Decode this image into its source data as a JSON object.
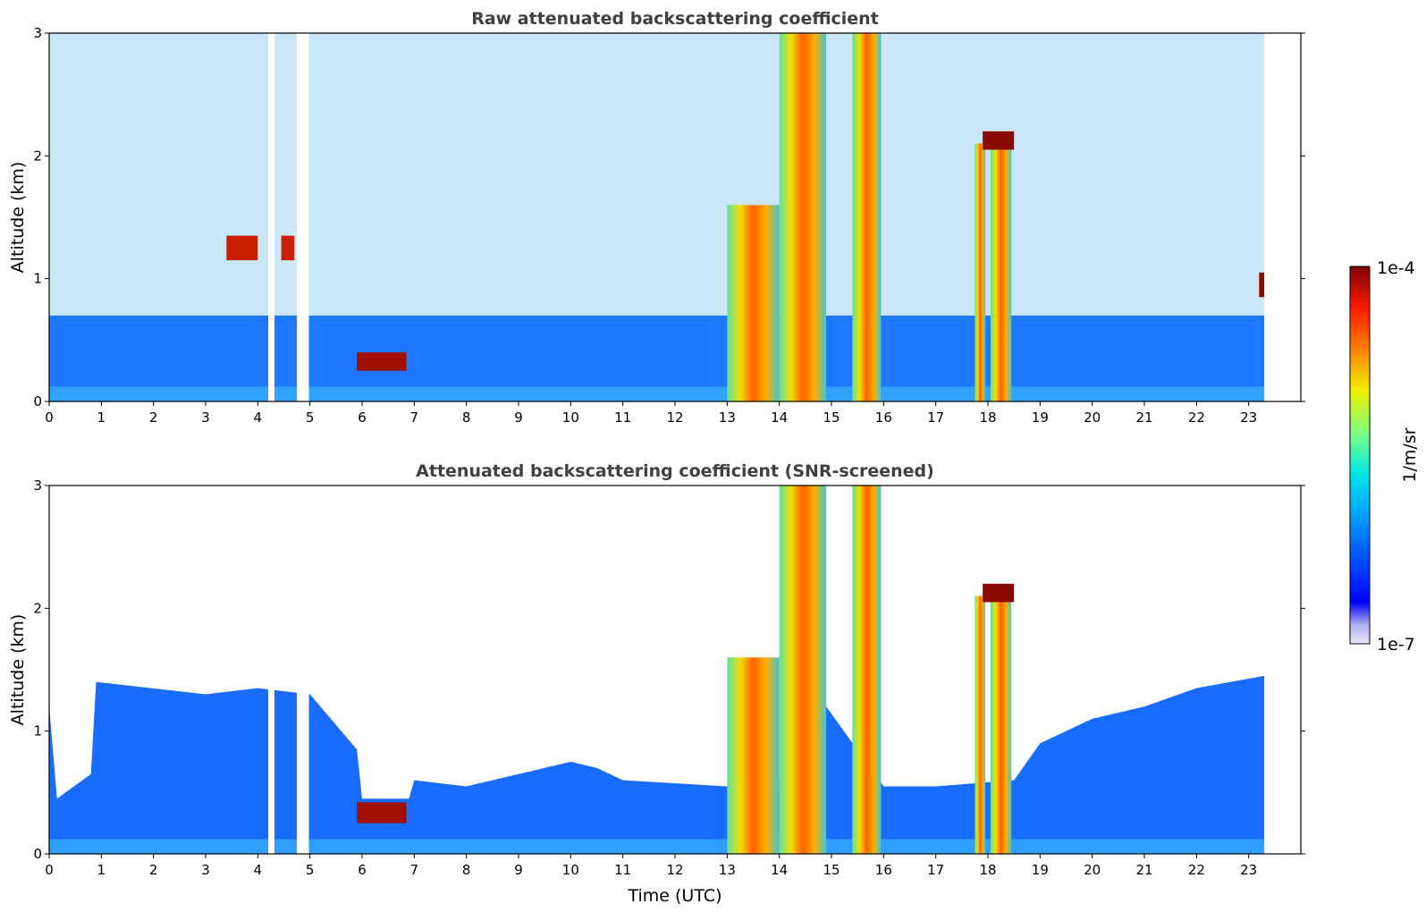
{
  "figure": {
    "colorbar": {
      "label": "1/m/sr",
      "max_label": "1e-4",
      "min_label": "1e-7",
      "colormap": "jet",
      "scale": "log"
    }
  },
  "chart_data": [
    {
      "type": "heatmap",
      "title": "Raw attenuated backscattering coefficient",
      "xlabel": "",
      "ylabel": "Altitude (km)",
      "xlim": [
        0,
        24
      ],
      "ylim": [
        0,
        3
      ],
      "x_ticks": [
        "0",
        "1",
        "2",
        "3",
        "4",
        "5",
        "6",
        "7",
        "8",
        "9",
        "10",
        "11",
        "12",
        "13",
        "14",
        "15",
        "16",
        "17",
        "18",
        "19",
        "20",
        "21",
        "22",
        "23"
      ],
      "y_ticks": [
        "0",
        "1",
        "2",
        "3"
      ],
      "data_end_hour": 23.3,
      "data_gaps_hours": [
        [
          4.2,
          4.32
        ],
        [
          4.75,
          4.98
        ]
      ],
      "features": [
        {
          "kind": "aerosol_layer",
          "t_start": 0,
          "t_end": 23.3,
          "alt_top_km": 0.7
        },
        {
          "kind": "noise_region",
          "t_start": 0,
          "t_end": 23.3,
          "alt_bottom_km": 0.7,
          "alt_top_km": 3.0
        },
        {
          "kind": "low_cloud",
          "t_start": 5.9,
          "t_end": 6.85,
          "alt_bottom_km": 0.25,
          "alt_top_km": 0.4
        },
        {
          "kind": "thin_cloud",
          "t_start": 3.4,
          "t_end": 4.0,
          "alt_bottom_km": 1.15,
          "alt_top_km": 1.35
        },
        {
          "kind": "thin_cloud",
          "t_start": 4.45,
          "t_end": 4.7,
          "alt_bottom_km": 1.15,
          "alt_top_km": 1.35
        },
        {
          "kind": "precipitation",
          "t_start": 13.0,
          "t_end": 14.0,
          "alt_bottom_km": 0,
          "alt_top_km": 1.6
        },
        {
          "kind": "precipitation",
          "t_start": 14.0,
          "t_end": 14.9,
          "alt_bottom_km": 0,
          "alt_top_km": 3.0
        },
        {
          "kind": "precipitation",
          "t_start": 15.4,
          "t_end": 15.95,
          "alt_bottom_km": 0,
          "alt_top_km": 3.0
        },
        {
          "kind": "precipitation",
          "t_start": 17.75,
          "t_end": 17.95,
          "alt_bottom_km": 0,
          "alt_top_km": 2.1
        },
        {
          "kind": "precipitation",
          "t_start": 18.05,
          "t_end": 18.45,
          "alt_bottom_km": 0,
          "alt_top_km": 2.1
        },
        {
          "kind": "cloud_layer",
          "t_start": 17.9,
          "t_end": 18.5,
          "alt_bottom_km": 2.05,
          "alt_top_km": 2.2
        },
        {
          "kind": "cloud_layer",
          "t_start": 23.2,
          "t_end": 23.3,
          "alt_bottom_km": 0.85,
          "alt_top_km": 1.05
        }
      ]
    },
    {
      "type": "heatmap",
      "title": "Attenuated backscattering coefficient (SNR-screened)",
      "xlabel": "Time (UTC)",
      "ylabel": "Altitude (km)",
      "xlim": [
        0,
        24
      ],
      "ylim": [
        0,
        3
      ],
      "x_ticks": [
        "0",
        "1",
        "2",
        "3",
        "4",
        "5",
        "6",
        "7",
        "8",
        "9",
        "10",
        "11",
        "12",
        "13",
        "14",
        "15",
        "16",
        "17",
        "18",
        "19",
        "20",
        "21",
        "22",
        "23"
      ],
      "y_ticks": [
        "0",
        "1",
        "2",
        "3"
      ],
      "data_end_hour": 23.3,
      "data_gaps_hours": [
        [
          4.2,
          4.32
        ],
        [
          4.75,
          4.98
        ]
      ],
      "screened_boundary_km": [
        [
          0.0,
          1.2
        ],
        [
          0.15,
          0.45
        ],
        [
          0.8,
          0.65
        ],
        [
          0.9,
          1.4
        ],
        [
          3.0,
          1.3
        ],
        [
          4.0,
          1.35
        ],
        [
          5.0,
          1.3
        ],
        [
          5.9,
          0.85
        ],
        [
          6.0,
          0.45
        ],
        [
          6.9,
          0.45
        ],
        [
          7.0,
          0.6
        ],
        [
          8.0,
          0.55
        ],
        [
          9.0,
          0.65
        ],
        [
          10.0,
          0.75
        ],
        [
          10.5,
          0.7
        ],
        [
          11.0,
          0.6
        ],
        [
          13.0,
          0.55
        ],
        [
          14.0,
          0.6
        ],
        [
          14.9,
          1.2
        ],
        [
          16.0,
          0.55
        ],
        [
          17.0,
          0.55
        ],
        [
          18.5,
          0.6
        ],
        [
          19.0,
          0.9
        ],
        [
          20.0,
          1.1
        ],
        [
          21.0,
          1.2
        ],
        [
          22.0,
          1.35
        ],
        [
          23.3,
          1.45
        ]
      ],
      "features": [
        {
          "kind": "low_cloud",
          "t_start": 5.9,
          "t_end": 6.85,
          "alt_bottom_km": 0.25,
          "alt_top_km": 0.42
        },
        {
          "kind": "precipitation",
          "t_start": 13.0,
          "t_end": 14.0,
          "alt_bottom_km": 0,
          "alt_top_km": 1.6
        },
        {
          "kind": "precipitation",
          "t_start": 14.0,
          "t_end": 14.9,
          "alt_bottom_km": 0,
          "alt_top_km": 3.0
        },
        {
          "kind": "precipitation",
          "t_start": 15.4,
          "t_end": 15.95,
          "alt_bottom_km": 0,
          "alt_top_km": 3.0
        },
        {
          "kind": "precipitation",
          "t_start": 17.75,
          "t_end": 17.95,
          "alt_bottom_km": 0,
          "alt_top_km": 2.1
        },
        {
          "kind": "precipitation",
          "t_start": 18.05,
          "t_end": 18.45,
          "alt_bottom_km": 0,
          "alt_top_km": 2.1
        },
        {
          "kind": "cloud_layer",
          "t_start": 17.9,
          "t_end": 18.5,
          "alt_bottom_km": 2.05,
          "alt_top_km": 2.2
        }
      ]
    }
  ]
}
